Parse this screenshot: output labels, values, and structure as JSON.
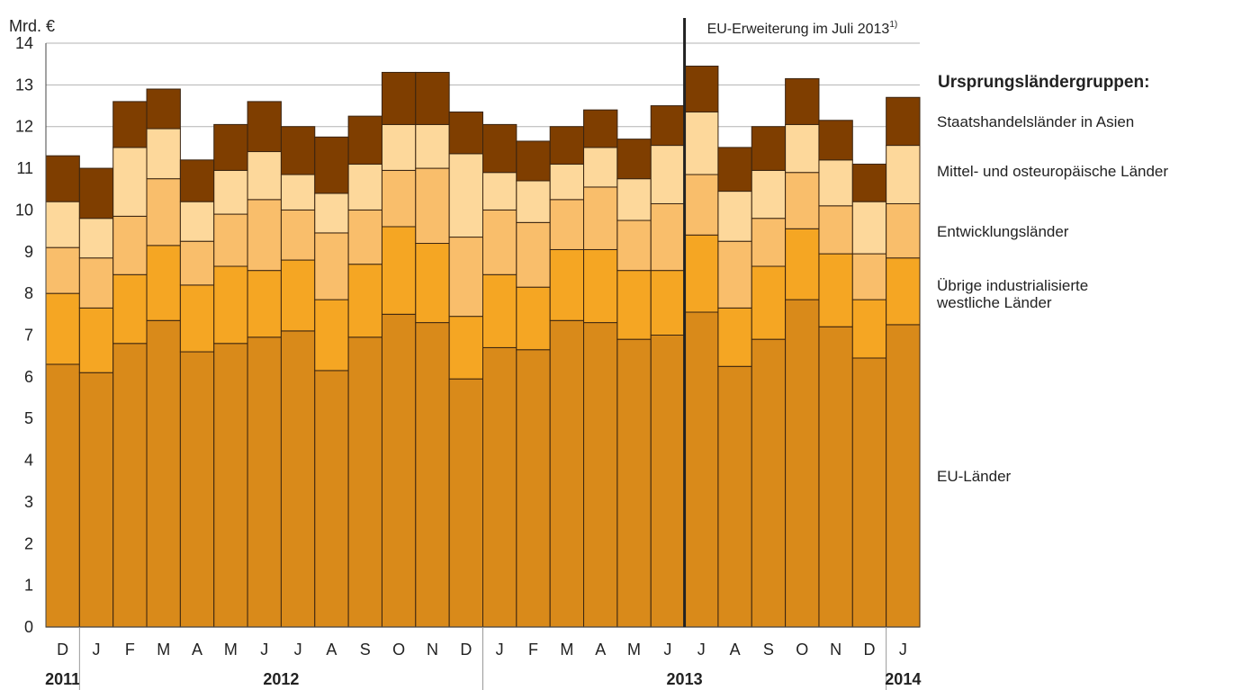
{
  "chart_data": {
    "type": "bar",
    "stacked": true,
    "unit_label": "Mrd. €",
    "ylim": [
      0,
      14
    ],
    "yticks": [
      0,
      1,
      2,
      3,
      4,
      5,
      6,
      7,
      8,
      9,
      10,
      11,
      12,
      13,
      14
    ],
    "grid": true,
    "categories": [
      "D",
      "J",
      "F",
      "M",
      "A",
      "M",
      "J",
      "J",
      "A",
      "S",
      "O",
      "N",
      "D",
      "J",
      "F",
      "M",
      "A",
      "M",
      "J",
      "J",
      "A",
      "S",
      "O",
      "N",
      "D",
      "J"
    ],
    "years": [
      {
        "label": "2011",
        "start": 0,
        "end": 0
      },
      {
        "label": "2012",
        "start": 1,
        "end": 12
      },
      {
        "label": "2013",
        "start": 13,
        "end": 24
      },
      {
        "label": "2014",
        "start": 25,
        "end": 25
      }
    ],
    "annotation": {
      "text": "EU-Erweiterung im Juli 2013",
      "superscript": "1)",
      "after_index": 18
    },
    "legend_title": "Ursprungsländergruppen:",
    "series": [
      {
        "name": "EU-Länder",
        "color": "#D98A1A",
        "values": [
          6.3,
          6.1,
          6.8,
          7.35,
          6.6,
          6.8,
          6.95,
          7.1,
          6.15,
          6.95,
          7.5,
          7.3,
          5.95,
          6.7,
          6.65,
          7.35,
          7.3,
          6.9,
          7.0,
          7.55,
          6.25,
          6.9,
          7.85,
          7.2,
          6.45,
          7.25
        ]
      },
      {
        "name": "Übrige industrialisierte\nwestliche Länder",
        "color": "#F5A623",
        "values": [
          1.7,
          1.55,
          1.65,
          1.8,
          1.6,
          1.85,
          1.6,
          1.7,
          1.7,
          1.75,
          2.1,
          1.9,
          1.5,
          1.75,
          1.5,
          1.7,
          1.75,
          1.65,
          1.55,
          1.85,
          1.4,
          1.75,
          1.7,
          1.75,
          1.4,
          1.6
        ]
      },
      {
        "name": "Entwicklungsländer",
        "color": "#F9BE6B",
        "values": [
          1.1,
          1.2,
          1.4,
          1.6,
          1.05,
          1.25,
          1.7,
          1.2,
          1.6,
          1.3,
          1.35,
          1.8,
          1.9,
          1.55,
          1.55,
          1.2,
          1.5,
          1.2,
          1.6,
          1.45,
          1.6,
          1.15,
          1.35,
          1.15,
          1.1,
          1.3
        ]
      },
      {
        "name": "Mittel- und osteuropäische Länder",
        "color": "#FDD89B",
        "values": [
          1.1,
          0.95,
          1.65,
          1.2,
          0.95,
          1.05,
          1.15,
          0.85,
          0.95,
          1.1,
          1.1,
          1.05,
          2.0,
          0.9,
          1.0,
          0.85,
          0.95,
          1.0,
          1.4,
          1.5,
          1.2,
          1.15,
          1.15,
          1.1,
          1.25,
          1.4
        ]
      },
      {
        "name": "Staatshandelsländer in Asien",
        "color": "#7F3E00",
        "values": [
          1.1,
          1.2,
          1.1,
          0.95,
          1.0,
          1.1,
          1.2,
          1.15,
          1.35,
          1.15,
          1.25,
          1.25,
          1.0,
          1.15,
          0.95,
          0.9,
          0.9,
          0.95,
          0.95,
          1.1,
          1.05,
          1.05,
          1.1,
          0.95,
          0.9,
          1.15
        ]
      }
    ]
  }
}
